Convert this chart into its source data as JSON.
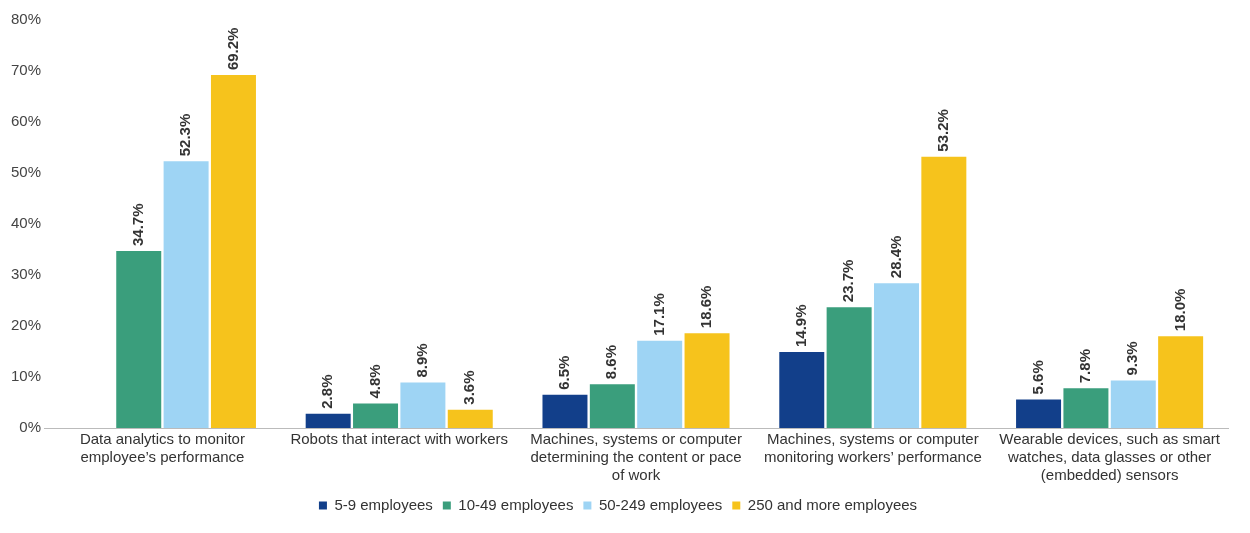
{
  "chart_data": {
    "type": "bar",
    "categories": [
      "Data analytics to monitor employee’s performance",
      "Robots that interact with workers",
      "Machines, systems or computer determining the content or pace of work",
      "Machines, systems or computer monitoring workers’ performance",
      "Wearable devices, such as smart watches, data glasses or other (embedded) sensors"
    ],
    "series": [
      {
        "name": "5-9 employees",
        "color": "#123f8a",
        "values": [
          null,
          2.8,
          6.5,
          14.9,
          5.6
        ],
        "value_labels": [
          null,
          "2.8%",
          "6.5%",
          "14.9%",
          "5.6%"
        ]
      },
      {
        "name": "10-49 employees",
        "color": "#3a9e7c",
        "values": [
          34.7,
          4.8,
          8.6,
          23.7,
          7.8
        ],
        "value_labels": [
          "34.7%",
          "4.8%",
          "8.6%",
          "23.7%",
          "7.8%"
        ]
      },
      {
        "name": "50-249 employees",
        "color": "#9ed4f4",
        "values": [
          52.3,
          8.9,
          17.1,
          28.4,
          9.3
        ],
        "value_labels": [
          "52.3%",
          "8.9%",
          "17.1%",
          "28.4%",
          "9.3%"
        ]
      },
      {
        "name": "250 and more employees",
        "color": "#f6c31c",
        "values": [
          69.2,
          3.6,
          18.6,
          53.2,
          18.0
        ],
        "value_labels": [
          "69.2%",
          "3.6%",
          "18.6%",
          "53.2%",
          "18.0%"
        ]
      }
    ],
    "ylim": [
      0,
      80
    ],
    "yticks": [
      {
        "value": 0,
        "label": "0%"
      },
      {
        "value": 10,
        "label": "10%"
      },
      {
        "value": 20,
        "label": "20%"
      },
      {
        "value": 30,
        "label": "30%"
      },
      {
        "value": 40,
        "label": "40%"
      },
      {
        "value": 50,
        "label": "50%"
      },
      {
        "value": 60,
        "label": "60%"
      },
      {
        "value": 70,
        "label": "70%"
      },
      {
        "value": 80,
        "label": "80%"
      }
    ],
    "grid": false,
    "legend": "bottom"
  }
}
